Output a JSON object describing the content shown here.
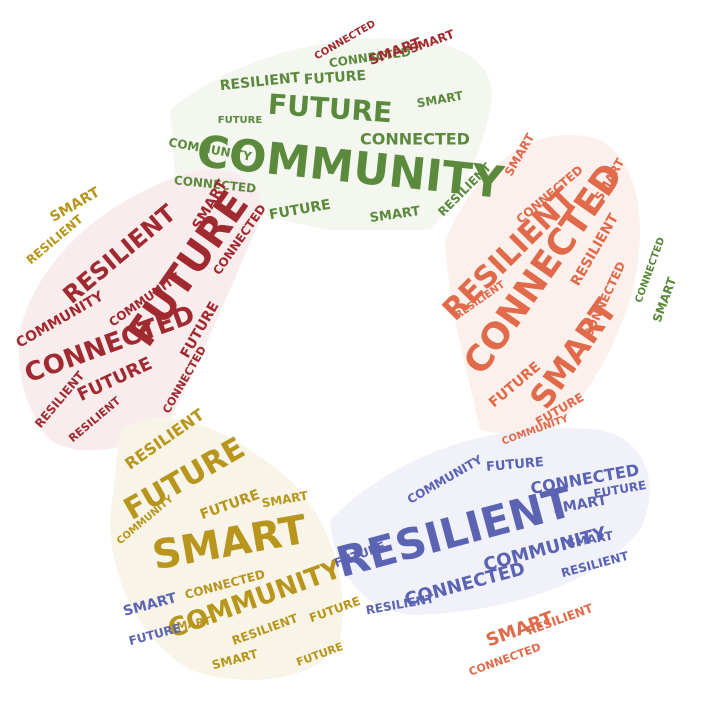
{
  "words": [
    "COMMUNITY",
    "FUTURE",
    "CONNECTED",
    "RESILIENT",
    "SMART"
  ],
  "colors": {
    "green": "#5b8a3c",
    "orange": "#e06a4a",
    "red": "#a02a30",
    "gold": "#b8951c",
    "blue": "#5b63b3"
  }
}
